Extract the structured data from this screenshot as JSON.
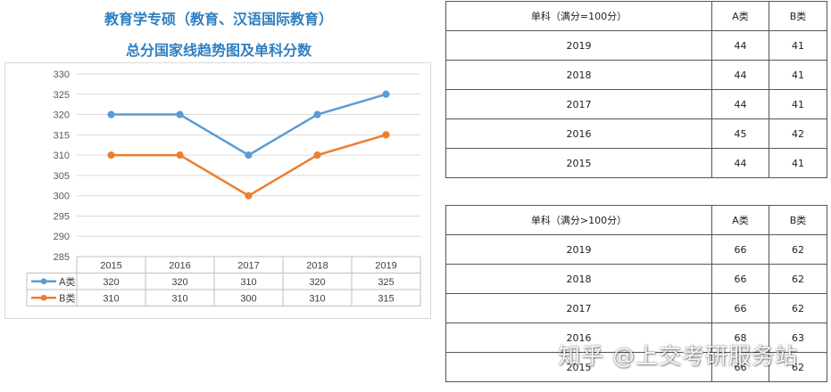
{
  "header": {
    "title_line1": "教育学专硕（教育、汉语国际教育）",
    "title_line2": "总分国家线趋势图及单科分数"
  },
  "chart_data": {
    "type": "line",
    "title": "",
    "xlabel": "",
    "ylabel": "",
    "categories": [
      "2015",
      "2016",
      "2017",
      "2018",
      "2019"
    ],
    "ylim": [
      285,
      330
    ],
    "yticks": [
      285,
      290,
      295,
      300,
      305,
      310,
      315,
      320,
      325,
      330
    ],
    "grid": true,
    "legend": "data-table-below",
    "series": [
      {
        "name": "A类",
        "values": [
          320,
          320,
          310,
          320,
          325
        ],
        "color": "#5b9bd5"
      },
      {
        "name": "B类",
        "values": [
          310,
          310,
          300,
          310,
          315
        ],
        "color": "#ed7d31"
      }
    ]
  },
  "table1": {
    "headers": [
      "单科（满分=100分）",
      "A类",
      "B类"
    ],
    "rows": [
      [
        "2019",
        "44",
        "41"
      ],
      [
        "2018",
        "44",
        "41"
      ],
      [
        "2017",
        "44",
        "41"
      ],
      [
        "2016",
        "45",
        "42"
      ],
      [
        "2015",
        "44",
        "41"
      ]
    ]
  },
  "table2": {
    "headers": [
      "单科（满分>100分）",
      "A类",
      "B类"
    ],
    "rows": [
      [
        "2019",
        "66",
        "62"
      ],
      [
        "2018",
        "66",
        "62"
      ],
      [
        "2017",
        "66",
        "62"
      ],
      [
        "2016",
        "68",
        "63"
      ],
      [
        "2015",
        "66",
        "62"
      ]
    ]
  },
  "watermark": {
    "text": "知乎 @上交考研服务站"
  }
}
